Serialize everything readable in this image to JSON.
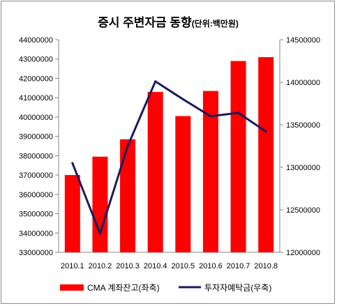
{
  "chart_data": {
    "type": "bar",
    "title": "증시 주변자금 동향",
    "subtitle": "(단위:백만원)",
    "categories": [
      "2010.1",
      "2010.2",
      "2010.3",
      "2010.4",
      "2010.5",
      "2010.6",
      "2010.7",
      "2010.8"
    ],
    "series": [
      {
        "name": "CMA 계좌잔고(좌축)",
        "type": "bar",
        "axis": "left",
        "color": "#ff0000",
        "values": [
          37000000,
          37950000,
          38850000,
          41300000,
          40050000,
          41350000,
          42900000,
          43100000
        ]
      },
      {
        "name": "투자자예탁금(우축)",
        "type": "line",
        "axis": "right",
        "color": "#1a1a5e",
        "values": [
          13050000,
          12220000,
          13250000,
          14010000,
          13800000,
          13600000,
          13640000,
          13420000
        ]
      }
    ],
    "left_axis": {
      "ylim": [
        33000000,
        44000000
      ],
      "ticks": [
        "33000000",
        "34000000",
        "35000000",
        "36000000",
        "37000000",
        "38000000",
        "39000000",
        "40000000",
        "41000000",
        "42000000",
        "43000000",
        "44000000"
      ]
    },
    "right_axis": {
      "ylim": [
        12000000,
        14500000
      ],
      "ticks": [
        "12000000",
        "12500000",
        "13000000",
        "13500000",
        "14000000",
        "14500000"
      ]
    },
    "grid": false,
    "legend": "bottom"
  }
}
